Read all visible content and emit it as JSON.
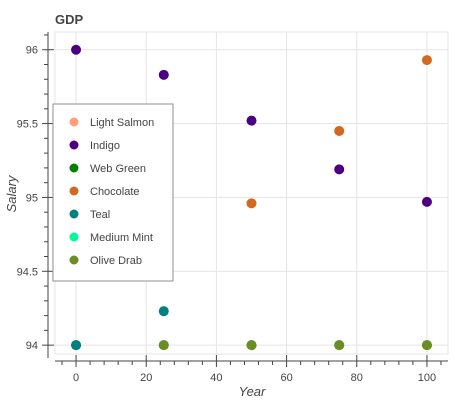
{
  "chart_data": {
    "type": "scatter",
    "title": "GDP",
    "xlabel": "Year",
    "ylabel": "Salary",
    "xlim": [
      -6,
      106
    ],
    "ylim": [
      93.94,
      96.12
    ],
    "x_ticks": [
      0,
      20,
      40,
      60,
      80,
      100
    ],
    "x_tick_labels": [
      "0",
      "20",
      "40",
      "60",
      "80",
      "100"
    ],
    "y_ticks": [
      94,
      94.5,
      95,
      95.5,
      96
    ],
    "y_tick_labels": [
      "94",
      "94.5",
      "95",
      "95.5",
      "96"
    ],
    "grid": true,
    "legend_position": "left",
    "series": [
      {
        "name": "Light Salmon",
        "color": "#FFA07A",
        "points": []
      },
      {
        "name": "Indigo",
        "color": "#4B0082",
        "points": [
          [
            0,
            96.0
          ],
          [
            25,
            95.83
          ],
          [
            50,
            95.52
          ],
          [
            75,
            95.19
          ],
          [
            100,
            94.97
          ]
        ]
      },
      {
        "name": "Web Green",
        "color": "#008000",
        "points": [
          [
            0,
            94.0
          ],
          [
            25,
            94.0
          ],
          [
            50,
            94.0
          ],
          [
            75,
            94.0
          ],
          [
            100,
            94.0
          ]
        ]
      },
      {
        "name": "Chocolate",
        "color": "#D2691E",
        "points": [
          [
            50,
            94.96
          ],
          [
            75,
            95.45
          ],
          [
            100,
            95.93
          ]
        ]
      },
      {
        "name": "Teal",
        "color": "#008080",
        "points": [
          [
            0,
            94.0
          ],
          [
            25,
            94.23
          ]
        ]
      },
      {
        "name": "Medium Mint",
        "color": "#00FA9A",
        "points": []
      },
      {
        "name": "Olive Drab",
        "color": "#6B8E23",
        "points": [
          [
            25,
            94.0
          ],
          [
            50,
            94.0
          ],
          [
            75,
            94.0
          ],
          [
            100,
            94.0
          ]
        ]
      }
    ]
  }
}
